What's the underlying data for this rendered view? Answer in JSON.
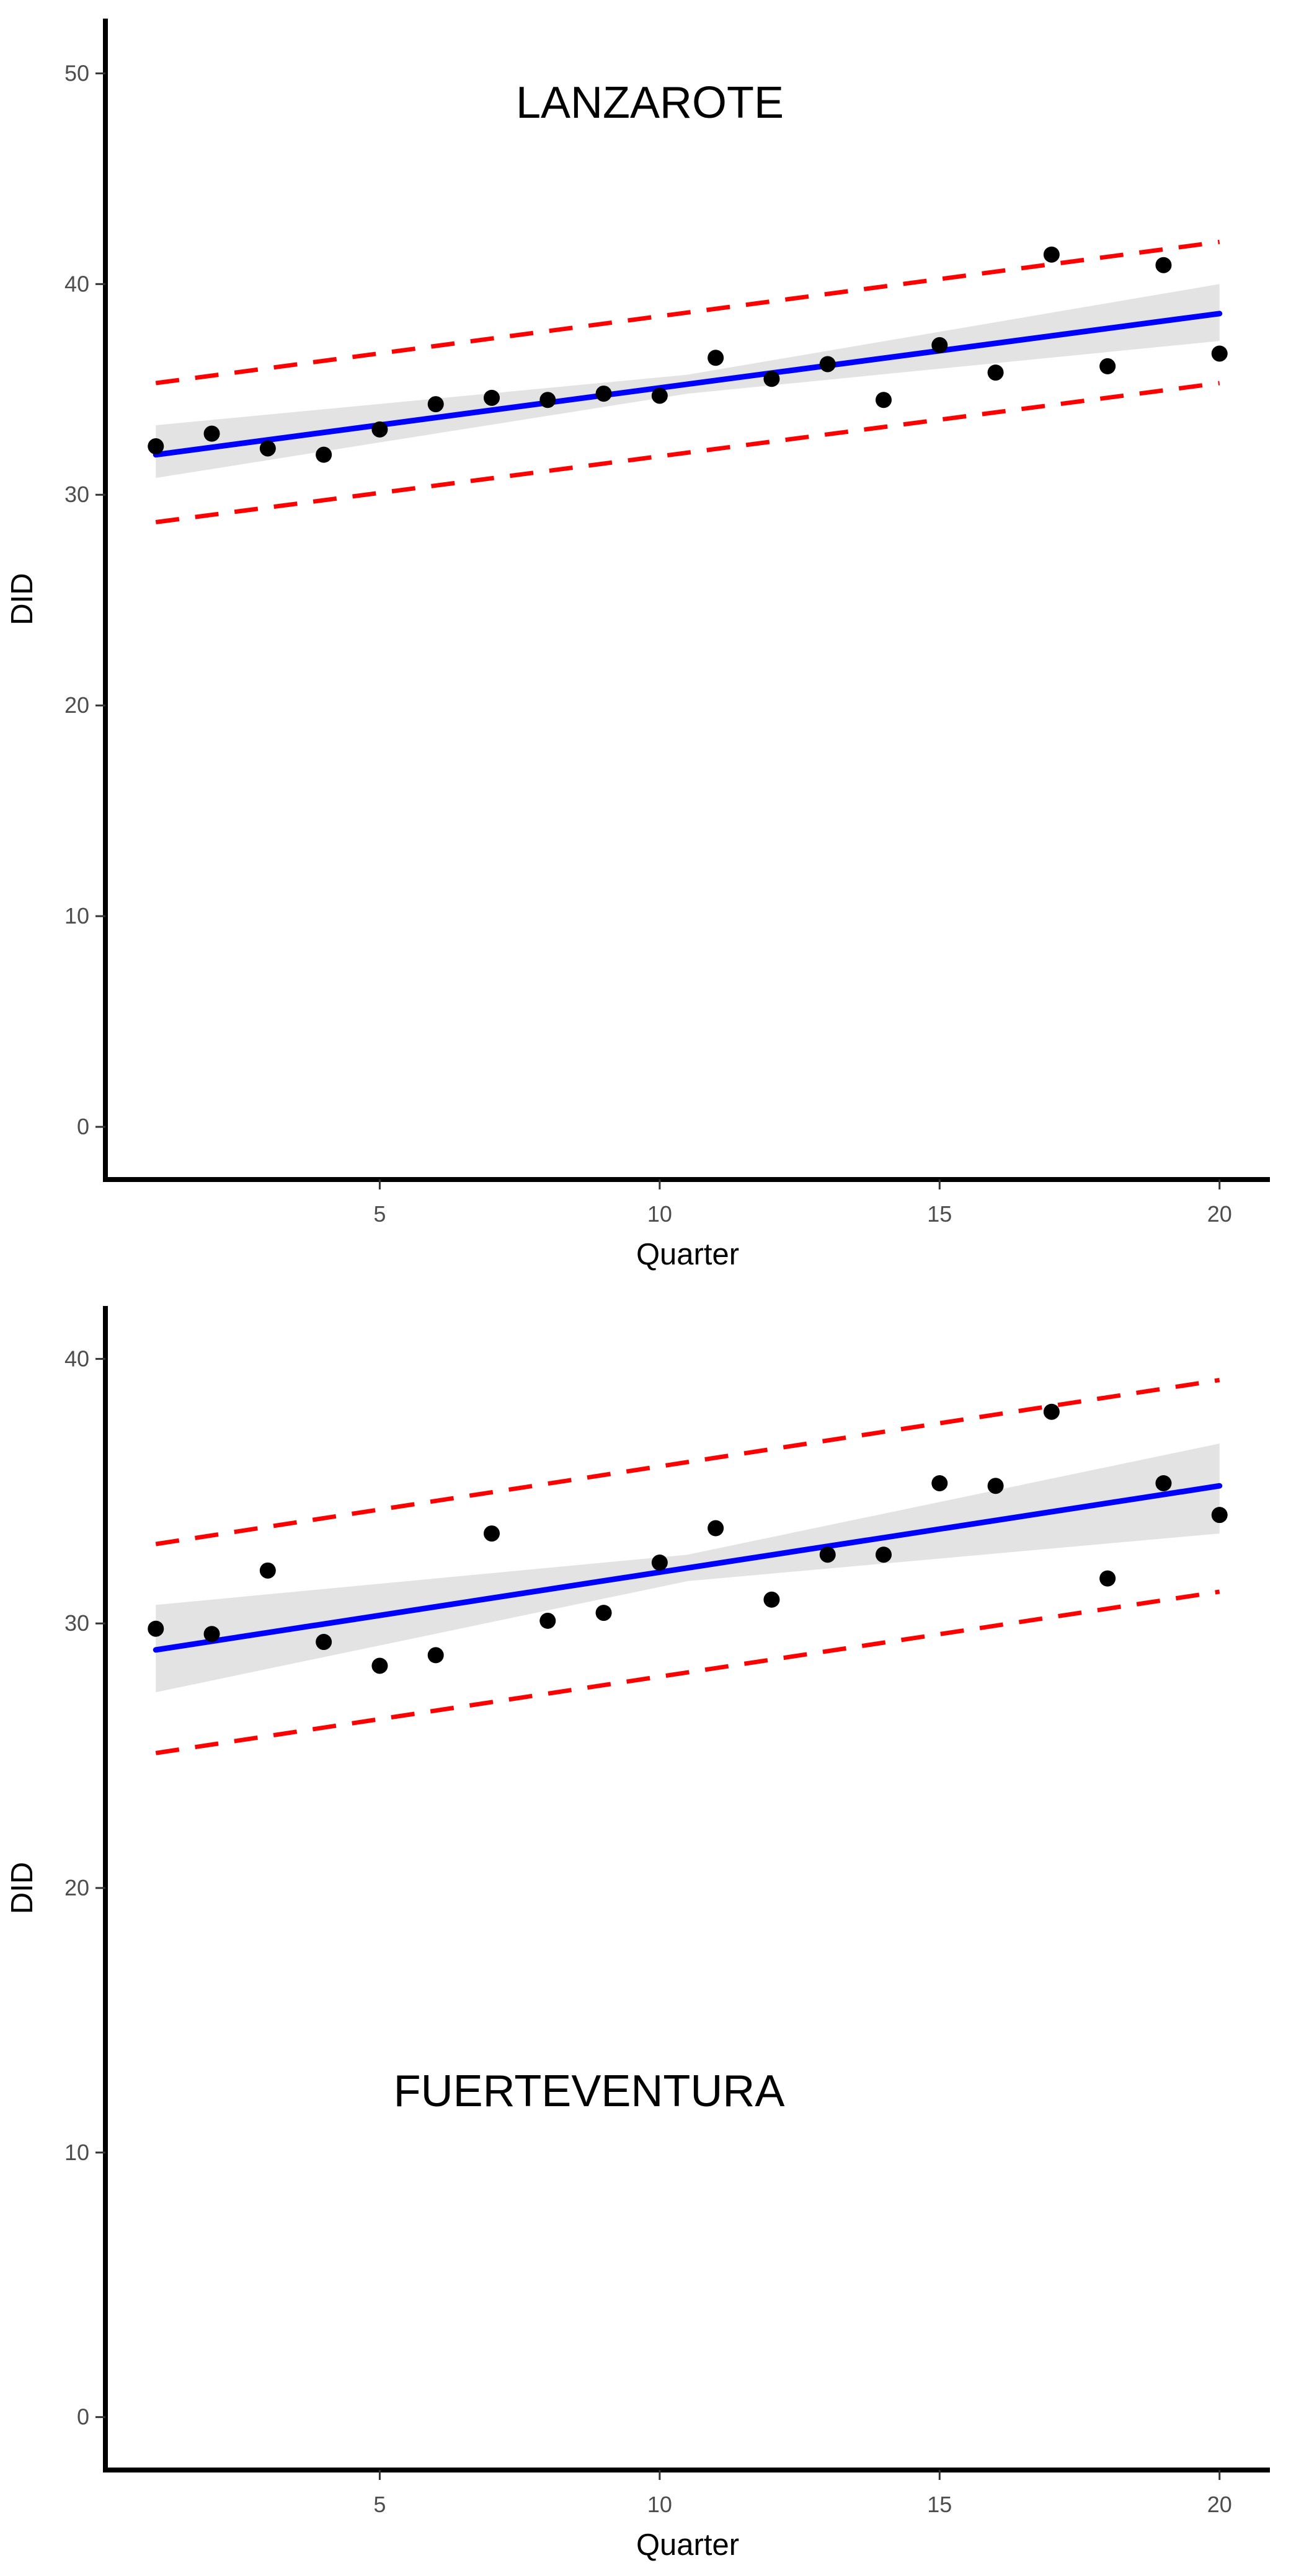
{
  "chart_data": [
    {
      "type": "scatter",
      "title": "",
      "annotation": "LANZAROTE",
      "xlabel": "Quarter",
      "ylabel": "DID",
      "xlim": [
        0.1,
        20.9
      ],
      "ylim": [
        -2.5,
        52.6
      ],
      "xticks": [
        5,
        10,
        15,
        20
      ],
      "yticks": [
        0,
        10,
        20,
        30,
        40,
        50
      ],
      "grid": false,
      "legend": "none",
      "colors": {
        "points": "#000000",
        "fit": "#0000ff",
        "confidence_band": "#d9d9d9",
        "prediction_bounds": "#ff0000"
      },
      "points": {
        "x": [
          1,
          2,
          3,
          4,
          5,
          6,
          7,
          8,
          9,
          10,
          11,
          12,
          13,
          14,
          15,
          16,
          17,
          18,
          19,
          20
        ],
        "y": [
          32.3,
          32.9,
          32.2,
          31.9,
          33.1,
          34.3,
          34.6,
          34.5,
          34.8,
          34.7,
          36.5,
          35.5,
          36.2,
          34.5,
          37.1,
          35.8,
          41.4,
          36.1,
          40.9,
          36.7
        ]
      },
      "fit": {
        "x": [
          1,
          20
        ],
        "y": [
          31.9,
          38.6
        ]
      },
      "confidence_band": {
        "x": [
          1,
          10.5,
          20
        ],
        "lower": [
          30.8,
          34.8,
          37.3
        ],
        "upper": [
          33.3,
          35.7,
          40.0
        ]
      },
      "prediction_bounds": {
        "x": [
          1,
          20
        ],
        "lower": [
          28.7,
          35.3
        ],
        "upper": [
          35.3,
          42.0
        ]
      }
    },
    {
      "type": "scatter",
      "title": "",
      "annotation": "FUERTEVENTURA",
      "xlabel": "Quarter",
      "ylabel": "DID",
      "xlim": [
        0.1,
        20.9
      ],
      "ylim": [
        -2.0,
        42.0
      ],
      "xticks": [
        5,
        10,
        15,
        20
      ],
      "yticks": [
        0,
        10,
        20,
        30,
        40
      ],
      "grid": false,
      "legend": "none",
      "colors": {
        "points": "#000000",
        "fit": "#0000ff",
        "confidence_band": "#d9d9d9",
        "prediction_bounds": "#ff0000"
      },
      "points": {
        "x": [
          1,
          2,
          3,
          4,
          5,
          6,
          7,
          8,
          9,
          10,
          11,
          12,
          13,
          14,
          15,
          16,
          17,
          18,
          19,
          20
        ],
        "y": [
          29.8,
          29.6,
          32.0,
          29.3,
          28.4,
          28.8,
          33.4,
          30.1,
          30.4,
          32.3,
          33.6,
          30.9,
          32.6,
          32.6,
          35.3,
          35.2,
          38.0,
          31.7,
          35.3,
          34.1
        ]
      },
      "fit": {
        "x": [
          1,
          20
        ],
        "y": [
          29.0,
          35.2
        ]
      },
      "confidence_band": {
        "x": [
          1,
          10.5,
          20
        ],
        "lower": [
          27.4,
          31.6,
          33.4
        ],
        "upper": [
          30.7,
          32.6,
          36.8
        ]
      },
      "prediction_bounds": {
        "x": [
          1,
          20
        ],
        "lower": [
          25.1,
          31.2
        ],
        "upper": [
          33.0,
          39.2
        ]
      }
    }
  ]
}
